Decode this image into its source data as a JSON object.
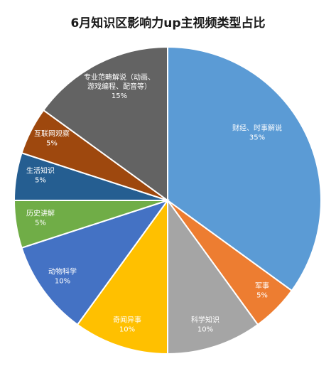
{
  "chart_data": {
    "type": "pie",
    "title": "6月知识区影响力up主视频类型占比",
    "start_angle_deg": 0,
    "direction": "clockwise",
    "slices": [
      {
        "label": "财经、时事解说",
        "value": 35,
        "pct_label": "35%",
        "color": "#5B9BD5"
      },
      {
        "label": "军事",
        "value": 5,
        "pct_label": "5%",
        "color": "#ED7D31"
      },
      {
        "label": "科学知识",
        "value": 10,
        "pct_label": "10%",
        "color": "#A5A5A5"
      },
      {
        "label": "奇闻异事",
        "value": 10,
        "pct_label": "10%",
        "color": "#FFC000"
      },
      {
        "label": "动物科学",
        "value": 10,
        "pct_label": "10%",
        "color": "#4472C4"
      },
      {
        "label": "历史讲解",
        "value": 5,
        "pct_label": "5%",
        "color": "#70AD47"
      },
      {
        "label": "生活知识",
        "value": 5,
        "pct_label": "5%",
        "color": "#255E91"
      },
      {
        "label": "互联网观察",
        "value": 5,
        "pct_label": "5%",
        "color": "#9E480E"
      },
      {
        "label": "专业范畴解说（动画、游戏编程、配音等）",
        "value": 15,
        "pct_label": "15%",
        "color": "#636363"
      }
    ]
  }
}
